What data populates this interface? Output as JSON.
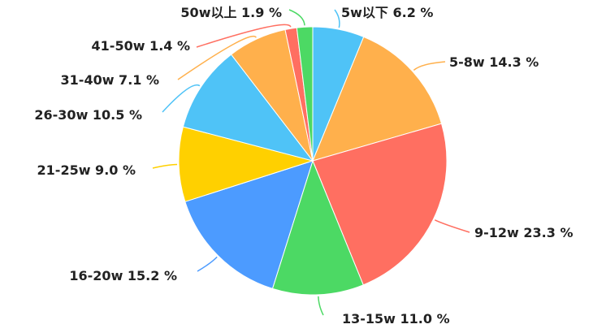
{
  "chart_data": {
    "type": "pie",
    "unit": "%",
    "slices": [
      {
        "label": "5w以下",
        "value": 6.2,
        "text": "5w以下 6.2 %",
        "color": "#4fc3f7"
      },
      {
        "label": "5-8w",
        "value": 14.3,
        "text": "5-8w 14.3 %",
        "color": "#ffb04c"
      },
      {
        "label": "9-12w",
        "value": 23.3,
        "text": "9-12w 23.3 %",
        "color": "#ff6f61"
      },
      {
        "label": "13-15w",
        "value": 11.0,
        "text": "13-15w 11.0 %",
        "color": "#4cd964"
      },
      {
        "label": "16-20w",
        "value": 15.2,
        "text": "16-20w 15.2 %",
        "color": "#4c9bff"
      },
      {
        "label": "21-25w",
        "value": 9.0,
        "text": "21-25w 9.0 %",
        "color": "#ffd000"
      },
      {
        "label": "26-30w",
        "value": 10.5,
        "text": "26-30w 10.5 %",
        "color": "#4fc3f7"
      },
      {
        "label": "31-40w",
        "value": 7.1,
        "text": "31-40w 7.1 %",
        "color": "#ffb04c"
      },
      {
        "label": "41-50w",
        "value": 1.4,
        "text": "41-50w 1.4 %",
        "color": "#ff6f61"
      },
      {
        "label": "50w以上",
        "value": 1.9,
        "text": "50w以上 1.9 %",
        "color": "#4cd964"
      }
    ]
  }
}
